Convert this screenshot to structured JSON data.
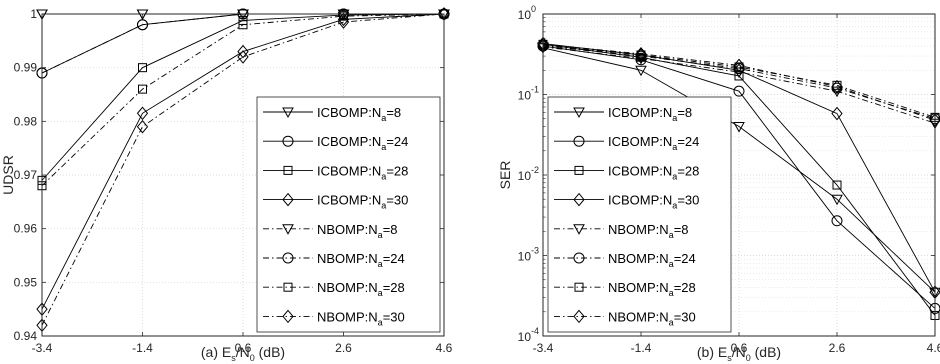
{
  "chart_data": [
    {
      "type": "line",
      "caption": {
        "prefix": "(a) E",
        "sub1": "s",
        "mid": "/N",
        "sub2": "0",
        "suffix": " (dB)"
      },
      "ylabel": "UDSR",
      "x": [
        -3.4,
        -1.4,
        0.6,
        2.6,
        4.6
      ],
      "xticklabels": [
        "-3.4",
        "-1.4",
        "0.6",
        "2.6",
        "4.6"
      ],
      "xlim": [
        -3.4,
        4.6
      ],
      "ylim": [
        0.94,
        1.0
      ],
      "yticks": [
        0.94,
        0.95,
        0.96,
        0.97,
        0.98,
        0.99,
        1.0
      ],
      "yticklabels": [
        "0.94",
        "0.95",
        "0.96",
        "0.97",
        "0.98",
        "0.99",
        "1"
      ],
      "yscale": "linear",
      "grid": true,
      "legend_position": "bottom-right",
      "series": [
        {
          "name": "ICBOMP:N_a=8",
          "legend_main": "ICBOMP:N",
          "legend_sub": "a",
          "legend_end": "=8",
          "marker": "triangle",
          "dash": "solid",
          "values": [
            1.0,
            1.0,
            1.0,
            1.0,
            1.0
          ]
        },
        {
          "name": "ICBOMP:N_a=24",
          "legend_main": "ICBOMP:N",
          "legend_sub": "a",
          "legend_end": "=24",
          "marker": "circle",
          "dash": "solid",
          "values": [
            0.989,
            0.998,
            1.0,
            1.0,
            1.0
          ]
        },
        {
          "name": "ICBOMP:N_a=28",
          "legend_main": "ICBOMP:N",
          "legend_sub": "a",
          "legend_end": "=28",
          "marker": "square",
          "dash": "solid",
          "values": [
            0.969,
            0.99,
            0.9988,
            0.9998,
            1.0
          ]
        },
        {
          "name": "ICBOMP:N_a=30",
          "legend_main": "ICBOMP:N",
          "legend_sub": "a",
          "legend_end": "=30",
          "marker": "diamond",
          "dash": "solid",
          "values": [
            0.945,
            0.9815,
            0.993,
            0.999,
            1.0
          ]
        },
        {
          "name": "NBOMP:N_a=8",
          "legend_main": "NBOMP:N",
          "legend_sub": "a",
          "legend_end": "=8",
          "marker": "triangle",
          "dash": "dashdot",
          "values": [
            1.0,
            1.0,
            1.0,
            1.0,
            1.0
          ]
        },
        {
          "name": "NBOMP:N_a=24",
          "legend_main": "NBOMP:N",
          "legend_sub": "a",
          "legend_end": "=24",
          "marker": "circle",
          "dash": "dashdot",
          "values": [
            0.989,
            0.998,
            1.0,
            1.0,
            1.0
          ]
        },
        {
          "name": "NBOMP:N_a=28",
          "legend_main": "NBOMP:N",
          "legend_sub": "a",
          "legend_end": "=28",
          "marker": "square",
          "dash": "dashdot",
          "values": [
            0.968,
            0.986,
            0.998,
            0.9996,
            1.0
          ]
        },
        {
          "name": "NBOMP:N_a=30",
          "legend_main": "NBOMP:N",
          "legend_sub": "a",
          "legend_end": "=30",
          "marker": "diamond",
          "dash": "dashdot",
          "values": [
            0.942,
            0.979,
            0.992,
            0.9985,
            1.0
          ]
        }
      ]
    },
    {
      "type": "line",
      "caption": {
        "prefix": "(b) E",
        "sub1": "s",
        "mid": "/N",
        "sub2": "0",
        "suffix": " (dB)"
      },
      "ylabel": "SER",
      "x": [
        -3.4,
        -1.4,
        0.6,
        2.6,
        4.6
      ],
      "xticklabels": [
        "-3.4",
        "-1.4",
        "0.6",
        "2.6",
        "4.6"
      ],
      "xlim": [
        -3.4,
        4.6
      ],
      "ylim": [
        0.0001,
        1
      ],
      "yscale": "log",
      "ytick_exponents": [
        0,
        -1,
        -2,
        -3,
        -4
      ],
      "yticklabels": [
        {
          "base": "10",
          "exp": "0"
        },
        {
          "base": "10",
          "exp": "-1"
        },
        {
          "base": "10",
          "exp": "-2"
        },
        {
          "base": "10",
          "exp": "-3"
        },
        {
          "base": "10",
          "exp": "-4"
        }
      ],
      "grid": true,
      "legend_position": "bottom-left",
      "series": [
        {
          "name": "ICBOMP:N_a=8",
          "legend_main": "ICBOMP:N",
          "legend_sub": "a",
          "legend_end": "=8",
          "marker": "triangle",
          "dash": "solid",
          "values": [
            0.38,
            0.2,
            0.04,
            0.005,
            0.00035
          ]
        },
        {
          "name": "ICBOMP:N_a=24",
          "legend_main": "ICBOMP:N",
          "legend_sub": "a",
          "legend_end": "=24",
          "marker": "circle",
          "dash": "solid",
          "values": [
            0.4,
            0.27,
            0.11,
            0.0027,
            0.00022
          ]
        },
        {
          "name": "ICBOMP:N_a=28",
          "legend_main": "ICBOMP:N",
          "legend_sub": "a",
          "legend_end": "=28",
          "marker": "square",
          "dash": "solid",
          "values": [
            0.42,
            0.29,
            0.17,
            0.0075,
            0.00018
          ]
        },
        {
          "name": "ICBOMP:N_a=30",
          "legend_main": "ICBOMP:N",
          "legend_sub": "a",
          "legend_end": "=30",
          "marker": "diamond",
          "dash": "solid",
          "values": [
            0.43,
            0.31,
            0.2,
            0.058,
            0.00035
          ]
        },
        {
          "name": "NBOMP:N_a=8",
          "legend_main": "NBOMP:N",
          "legend_sub": "a",
          "legend_end": "=8",
          "marker": "triangle",
          "dash": "dashdot",
          "values": [
            0.39,
            0.28,
            0.19,
            0.11,
            0.044
          ]
        },
        {
          "name": "NBOMP:N_a=24",
          "legend_main": "NBOMP:N",
          "legend_sub": "a",
          "legend_end": "=24",
          "marker": "circle",
          "dash": "dashdot",
          "values": [
            0.4,
            0.3,
            0.21,
            0.12,
            0.05
          ]
        },
        {
          "name": "NBOMP:N_a=28",
          "legend_main": "NBOMP:N",
          "legend_sub": "a",
          "legend_end": "=28",
          "marker": "square",
          "dash": "dashdot",
          "values": [
            0.41,
            0.31,
            0.22,
            0.13,
            0.052
          ]
        },
        {
          "name": "NBOMP:N_a=30",
          "legend_main": "NBOMP:N",
          "legend_sub": "a",
          "legend_end": "=30",
          "marker": "diamond",
          "dash": "dashdot",
          "values": [
            0.42,
            0.32,
            0.23,
            0.125,
            0.048
          ]
        }
      ]
    }
  ]
}
